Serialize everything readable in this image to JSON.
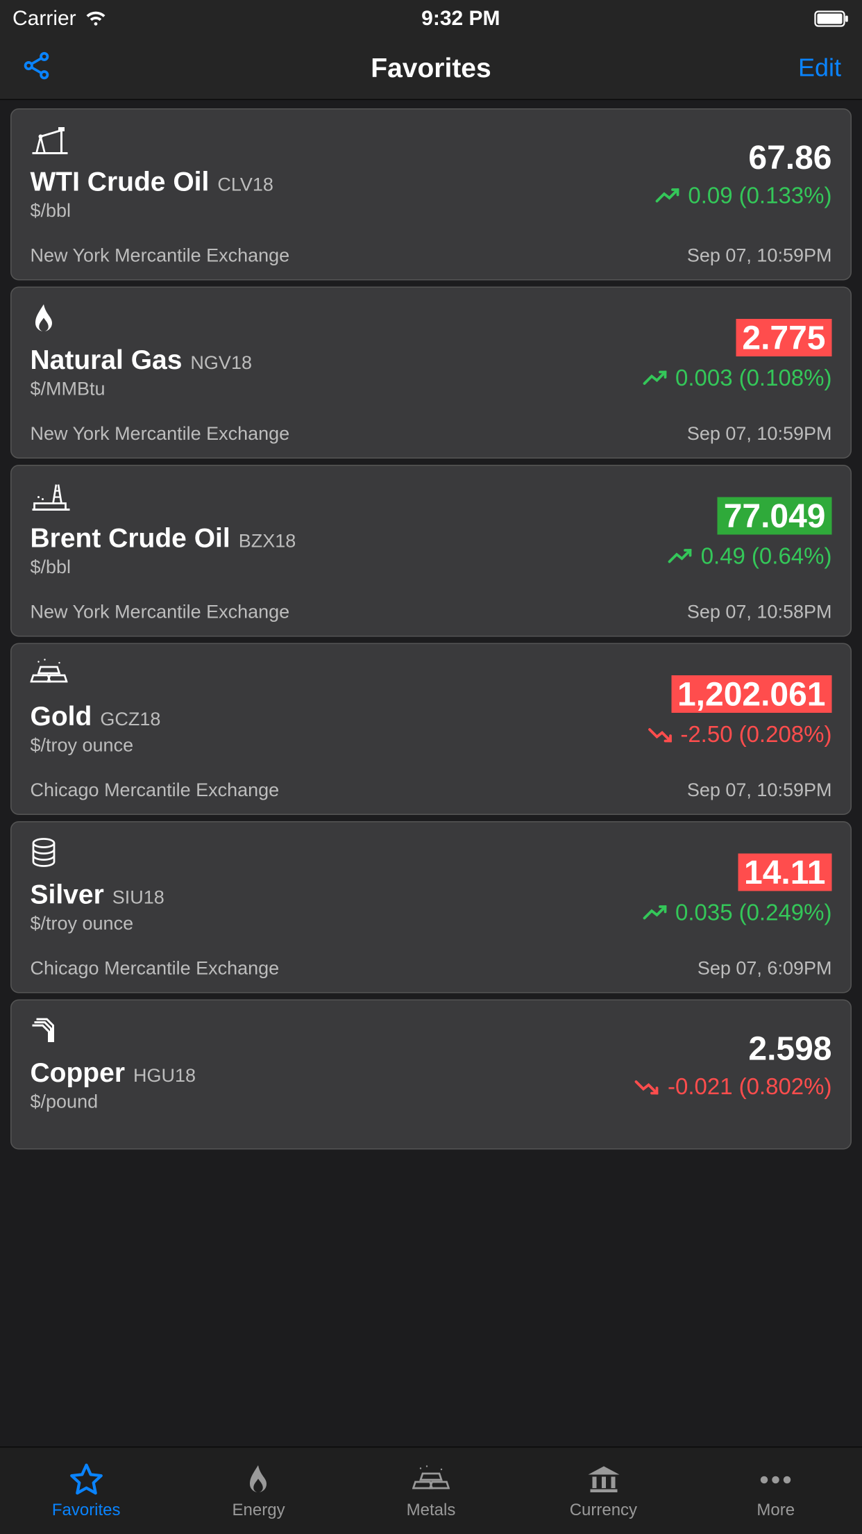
{
  "statusBar": {
    "carrier": "Carrier",
    "time": "9:32 PM"
  },
  "navBar": {
    "title": "Favorites",
    "editLabel": "Edit"
  },
  "colors": {
    "accent": "#0a84ff",
    "up": "#34c759",
    "down": "#ff4d4d",
    "bgGreen": "#2faa3a",
    "bgRed": "#ff4d4d"
  },
  "items": [
    {
      "icon": "oil-pump",
      "name": "WTI Crude Oil",
      "ticker": "CLV18",
      "unit": "$/bbl",
      "price": "67.86",
      "priceStyle": "plain",
      "direction": "up",
      "change": "0.09",
      "changePct": "(0.133%)",
      "exchange": "New York Mercantile Exchange",
      "timestamp": "Sep 07, 10:59PM"
    },
    {
      "icon": "flame",
      "name": "Natural Gas",
      "ticker": "NGV18",
      "unit": "$/MMBtu",
      "price": "2.775",
      "priceStyle": "bg-red",
      "direction": "up",
      "change": "0.003",
      "changePct": "(0.108%)",
      "exchange": "New York Mercantile Exchange",
      "timestamp": "Sep 07, 10:59PM"
    },
    {
      "icon": "oil-rig",
      "name": "Brent Crude Oil",
      "ticker": "BZX18",
      "unit": "$/bbl",
      "price": "77.049",
      "priceStyle": "bg-green",
      "direction": "up",
      "change": "0.49",
      "changePct": "(0.64%)",
      "exchange": "New York Mercantile Exchange",
      "timestamp": "Sep 07, 10:58PM"
    },
    {
      "icon": "gold-bars",
      "name": "Gold",
      "ticker": "GCZ18",
      "unit": "$/troy ounce",
      "price": "1,202.061",
      "priceStyle": "bg-red",
      "direction": "down",
      "change": "-2.50",
      "changePct": "(0.208%)",
      "exchange": "Chicago Mercantile Exchange",
      "timestamp": "Sep 07, 10:59PM"
    },
    {
      "icon": "coins",
      "name": "Silver",
      "ticker": "SIU18",
      "unit": "$/troy ounce",
      "price": "14.11",
      "priceStyle": "bg-red",
      "direction": "up",
      "change": "0.035",
      "changePct": "(0.249%)",
      "exchange": "Chicago Mercantile Exchange",
      "timestamp": "Sep 07, 6:09PM"
    },
    {
      "icon": "wire",
      "name": "Copper",
      "ticker": "HGU18",
      "unit": "$/pound",
      "price": "2.598",
      "priceStyle": "plain",
      "direction": "down",
      "change": "-0.021",
      "changePct": "(0.802%)",
      "exchange": "",
      "timestamp": ""
    }
  ],
  "tabs": [
    {
      "icon": "star",
      "label": "Favorites",
      "active": true
    },
    {
      "icon": "flame",
      "label": "Energy",
      "active": false
    },
    {
      "icon": "gold-bars",
      "label": "Metals",
      "active": false
    },
    {
      "icon": "bank",
      "label": "Currency",
      "active": false
    },
    {
      "icon": "more",
      "label": "More",
      "active": false
    }
  ]
}
